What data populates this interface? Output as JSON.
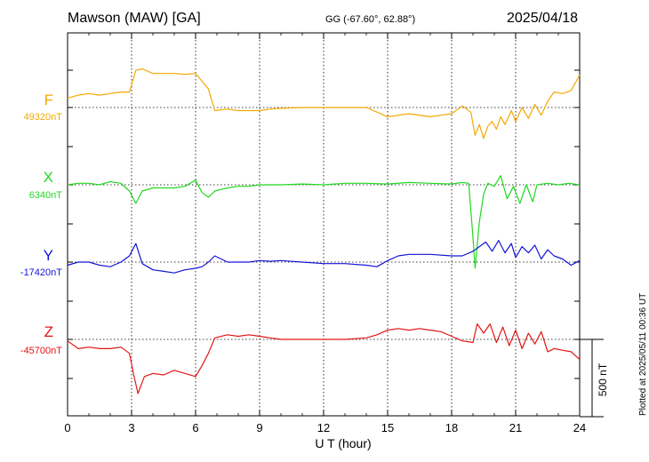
{
  "header": {
    "title": "Mawson (MAW)  [GA]",
    "coordinates": "GG (-67.60°,  62.88°)",
    "date": "2025/04/18"
  },
  "footer": {
    "plotted": "Plotted at 2025/05/11 00:36 UT"
  },
  "chart_data": {
    "type": "line",
    "xlabel": "U T (hour)",
    "xlim": [
      0,
      24
    ],
    "xticks": [
      0,
      3,
      6,
      9,
      12,
      15,
      18,
      21,
      24
    ],
    "grid": true,
    "scale_bar": {
      "value": 500,
      "label": "500 nT"
    },
    "series": [
      {
        "name": "F",
        "baseline_label": "49320nT",
        "baseline": 49320,
        "color": "#f5a800",
        "x": [
          0,
          0.5,
          1,
          1.5,
          2,
          2.5,
          2.9,
          3.2,
          3.5,
          4,
          4.5,
          5,
          5.5,
          6,
          6.3,
          6.6,
          6.9,
          7.5,
          8,
          8.5,
          9,
          9.5,
          10,
          11,
          12,
          13,
          14,
          15,
          15.5,
          16,
          17,
          17.5,
          18,
          18.5,
          18.9,
          19.1,
          19.3,
          19.5,
          19.7,
          19.9,
          20.1,
          20.3,
          20.5,
          20.8,
          21,
          21.3,
          21.6,
          21.9,
          22.2,
          22.5,
          22.8,
          23.2,
          23.6,
          24
        ],
        "y": [
          49380,
          49400,
          49410,
          49400,
          49410,
          49420,
          49420,
          49560,
          49570,
          49540,
          49540,
          49540,
          49535,
          49540,
          49490,
          49440,
          49300,
          49310,
          49300,
          49300,
          49300,
          49310,
          49315,
          49320,
          49320,
          49320,
          49320,
          49260,
          49270,
          49280,
          49260,
          49270,
          49280,
          49330,
          49290,
          49140,
          49210,
          49120,
          49200,
          49230,
          49180,
          49260,
          49210,
          49300,
          49230,
          49320,
          49250,
          49340,
          49270,
          49360,
          49420,
          49410,
          49430,
          49530
        ]
      },
      {
        "name": "X",
        "baseline_label": "6340nT",
        "baseline": 6340,
        "color": "#22d822",
        "x": [
          0,
          0.5,
          1,
          1.5,
          2,
          2.5,
          2.9,
          3.2,
          3.5,
          4,
          4.5,
          5,
          5.5,
          6,
          6.3,
          6.6,
          6.9,
          7.5,
          8,
          8.5,
          9,
          9.5,
          10,
          11,
          12,
          13,
          14,
          15,
          16,
          17,
          18,
          18.5,
          18.8,
          19,
          19.1,
          19.3,
          19.5,
          19.7,
          20,
          20.3,
          20.6,
          20.9,
          21.2,
          21.5,
          21.8,
          22,
          22.5,
          23,
          23.5,
          24
        ],
        "y": [
          6340,
          6350,
          6350,
          6340,
          6360,
          6350,
          6300,
          6220,
          6300,
          6320,
          6320,
          6320,
          6330,
          6370,
          6290,
          6260,
          6300,
          6320,
          6330,
          6330,
          6340,
          6340,
          6340,
          6345,
          6340,
          6350,
          6350,
          6345,
          6355,
          6350,
          6345,
          6355,
          6350,
          6000,
          5800,
          6100,
          6280,
          6350,
          6330,
          6400,
          6250,
          6330,
          6220,
          6340,
          6230,
          6340,
          6350,
          6340,
          6350,
          6340
        ]
      },
      {
        "name": "Y",
        "baseline_label": "-17420nT",
        "baseline": -17420,
        "color": "#1414d8",
        "x": [
          0,
          0.5,
          1,
          1.5,
          2,
          2.5,
          2.9,
          3.2,
          3.5,
          4,
          4.5,
          5,
          5.5,
          6,
          6.3,
          6.6,
          6.9,
          7.5,
          8,
          8.5,
          9,
          9.5,
          10,
          11,
          12,
          13,
          14,
          14.5,
          15,
          15.5,
          16,
          17,
          18,
          18.5,
          19,
          19.3,
          19.6,
          19.9,
          20.2,
          20.5,
          20.8,
          21,
          21.3,
          21.6,
          21.9,
          22.2,
          22.5,
          22.8,
          23.2,
          23.6,
          24
        ],
        "y": [
          -17440,
          -17420,
          -17420,
          -17440,
          -17450,
          -17420,
          -17380,
          -17300,
          -17430,
          -17470,
          -17480,
          -17490,
          -17470,
          -17460,
          -17450,
          -17420,
          -17380,
          -17420,
          -17420,
          -17420,
          -17410,
          -17415,
          -17410,
          -17420,
          -17430,
          -17430,
          -17440,
          -17450,
          -17410,
          -17380,
          -17370,
          -17370,
          -17380,
          -17380,
          -17350,
          -17320,
          -17290,
          -17350,
          -17280,
          -17360,
          -17300,
          -17390,
          -17320,
          -17360,
          -17310,
          -17400,
          -17340,
          -17380,
          -17400,
          -17440,
          -17410
        ]
      },
      {
        "name": "Z",
        "baseline_label": "-45700nT",
        "baseline": -45700,
        "color": "#e41414",
        "x": [
          0,
          0.5,
          1,
          1.5,
          2,
          2.5,
          2.9,
          3.1,
          3.3,
          3.6,
          4,
          4.5,
          5,
          5.5,
          6,
          6.3,
          6.6,
          6.9,
          7.5,
          8,
          8.5,
          9,
          9.5,
          10,
          11,
          12,
          13,
          14,
          14.5,
          15,
          15.5,
          16,
          16.5,
          17,
          17.5,
          18,
          18.5,
          19,
          19.2,
          19.5,
          19.8,
          20.1,
          20.4,
          20.7,
          21,
          21.3,
          21.6,
          21.9,
          22.2,
          22.5,
          22.8,
          23.2,
          23.6,
          24
        ],
        "y": [
          -45710,
          -45760,
          -45750,
          -45760,
          -45760,
          -45750,
          -45790,
          -45930,
          -46050,
          -45940,
          -45920,
          -45930,
          -45900,
          -45920,
          -45940,
          -45870,
          -45790,
          -45690,
          -45670,
          -45680,
          -45670,
          -45680,
          -45690,
          -45700,
          -45700,
          -45700,
          -45700,
          -45690,
          -45670,
          -45640,
          -45630,
          -45640,
          -45630,
          -45640,
          -45650,
          -45680,
          -45710,
          -45720,
          -45600,
          -45660,
          -45600,
          -45720,
          -45620,
          -45740,
          -45640,
          -45760,
          -45660,
          -45730,
          -45650,
          -45780,
          -45760,
          -45770,
          -45780,
          -45830
        ]
      }
    ]
  }
}
